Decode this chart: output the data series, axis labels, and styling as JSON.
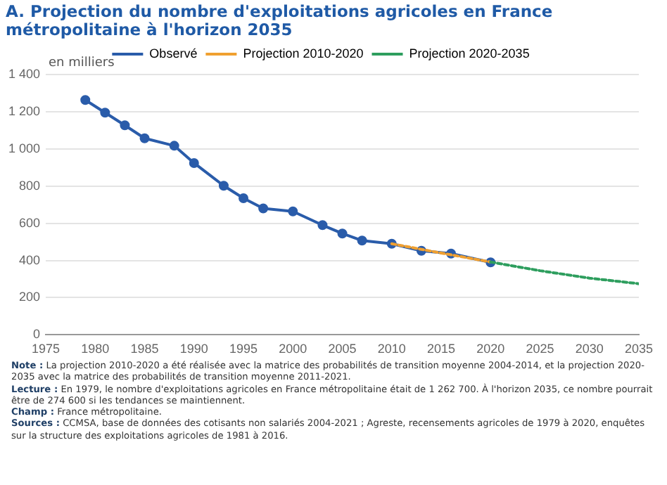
{
  "chart_data": {
    "type": "line",
    "title": "A. Projection du nombre d'exploitations agricoles en France métropolitaine à l'horizon 2035",
    "ylabel": "en milliers",
    "xlim": [
      1975,
      2035
    ],
    "xticks": [
      1975,
      1980,
      1985,
      1990,
      1995,
      2000,
      2005,
      2010,
      2015,
      2020,
      2025,
      2030,
      2035
    ],
    "ylim": [
      0,
      1400
    ],
    "yticks": [
      0,
      200,
      400,
      600,
      800,
      {
        "value": 1000,
        "label": "1 000"
      },
      {
        "value": 1200,
        "label": "1 200"
      },
      {
        "value": 1400,
        "label": "1 400"
      }
    ],
    "grid": "y",
    "legend": "top",
    "series": [
      {
        "name": "Observé",
        "color": "#2a5caa",
        "marker": "circle",
        "line_style": "solid",
        "x": [
          1979,
          1981,
          1983,
          1985,
          1988,
          1990,
          1993,
          1995,
          1997,
          2000,
          2003,
          2005,
          2007,
          2010,
          2013,
          2016,
          2020
        ],
        "values": [
          1263,
          1195,
          1127,
          1057,
          1017,
          924,
          802,
          735,
          680,
          664,
          590,
          545,
          507,
          490,
          452,
          437,
          390
        ]
      },
      {
        "name": "Projection 2010-2020",
        "color": "#f0a030",
        "marker": "none",
        "line_style": "dashed",
        "x": [
          2010,
          2015,
          2020
        ],
        "values": [
          490,
          440,
          392
        ]
      },
      {
        "name": "Projection 2020-2035",
        "color": "#2e9e5e",
        "marker": "none",
        "line_style": "dashed",
        "x": [
          2020,
          2025,
          2030,
          2035
        ],
        "values": [
          392,
          345,
          305,
          275
        ]
      }
    ],
    "annotations": [
      "Note : La projection 2010-2020 a été réalisée avec la matrice des probabilités de transition moyenne 2004-2014, et la projection 2020-2035 avec la matrice des probabilités de transition moyenne 2011-2021.",
      "Lecture : En 1979, le nombre d'exploitations agricoles en France métropolitaine était de 1 262 700. À l'horizon 2035, ce nombre pourrait être de 274 600 si les tendances se maintiennent.",
      "Champ : France métropolitaine.",
      "Sources : CCMSA, base de données des cotisants non salariés 2004-2021 ; Agreste, recensements agricoles de 1979 à 2020, enquêtes sur la structure des exploitations agricoles de 1981 à 2016."
    ]
  }
}
